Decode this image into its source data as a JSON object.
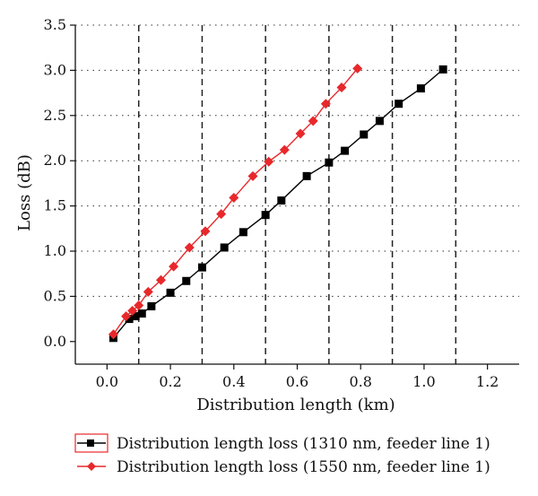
{
  "chart_data": {
    "type": "line",
    "title": "",
    "xlabel": "Distribution length (km)",
    "ylabel": "Loss (dB)",
    "xlim": [
      -0.1,
      1.3
    ],
    "ylim": [
      -0.25,
      3.5
    ],
    "x_ticks": [
      "0.0",
      "0.2",
      "0.4",
      "0.6",
      "0.8",
      "1.0",
      "1.2"
    ],
    "x_tick_values": [
      0.0,
      0.2,
      0.4,
      0.6,
      0.8,
      1.0,
      1.2
    ],
    "y_ticks": [
      "0.0",
      "0.5",
      "1.0",
      "1.5",
      "2.0",
      "2.5",
      "3.0",
      "3.5"
    ],
    "y_tick_values": [
      0.0,
      0.5,
      1.0,
      1.5,
      2.0,
      2.5,
      3.0,
      3.5
    ],
    "vertical_dashed_lines": [
      0.1,
      0.3,
      0.5,
      0.7,
      0.9,
      1.1
    ],
    "horizontal_grid": "dotted",
    "legend_position": "bottom",
    "series": [
      {
        "name": "Distribution length loss (1310 nm, feeder line 1)",
        "color": "#000000",
        "marker": "square",
        "x": [
          0.02,
          0.07,
          0.09,
          0.11,
          0.14,
          0.2,
          0.25,
          0.3,
          0.37,
          0.43,
          0.5,
          0.55,
          0.63,
          0.7,
          0.75,
          0.81,
          0.86,
          0.92,
          0.99,
          1.06
        ],
        "y": [
          0.04,
          0.25,
          0.28,
          0.31,
          0.39,
          0.54,
          0.67,
          0.82,
          1.04,
          1.21,
          1.4,
          1.56,
          1.83,
          1.98,
          2.11,
          2.29,
          2.44,
          2.63,
          2.8,
          3.01
        ]
      },
      {
        "name": "Distribution length loss (1550 nm, feeder line 1)",
        "color": "#e8282b",
        "marker": "diamond",
        "x": [
          0.02,
          0.06,
          0.08,
          0.1,
          0.13,
          0.17,
          0.21,
          0.26,
          0.31,
          0.36,
          0.4,
          0.46,
          0.51,
          0.56,
          0.61,
          0.65,
          0.69,
          0.74
        ],
        "y": [
          0.08,
          0.28,
          0.34,
          0.4,
          0.55,
          0.68,
          0.83,
          1.04,
          1.22,
          1.41,
          1.59,
          1.83,
          1.99,
          2.12,
          2.3,
          2.44,
          2.63,
          2.81
        ]
      }
    ],
    "series_extra_last_point": {
      "series": 1,
      "x": 0.79,
      "y": 3.02
    }
  }
}
